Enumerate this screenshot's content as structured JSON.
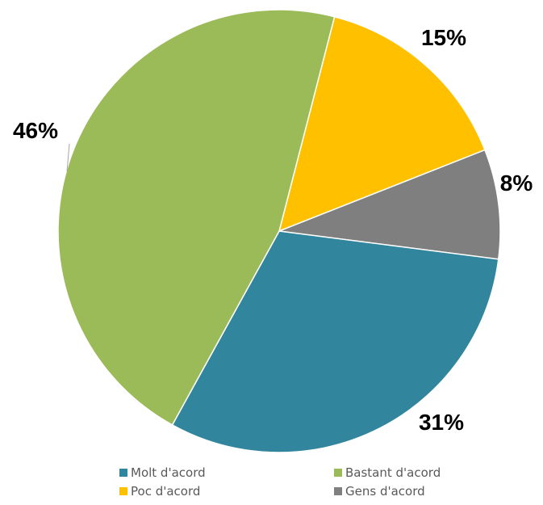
{
  "chart_data": {
    "type": "pie",
    "slices": [
      {
        "label": "Molt d'acord",
        "value": 31,
        "value_label": "31%",
        "color": "#31859c"
      },
      {
        "label": "Bastant d'acord",
        "value": 46,
        "value_label": "46%",
        "color": "#9bbb59"
      },
      {
        "label": "Poc d'acord",
        "value": 15,
        "value_label": "15%",
        "color": "#ffc000"
      },
      {
        "label": "Gens d'acord",
        "value": 8,
        "value_label": "8%",
        "color": "#7f7f7f"
      }
    ],
    "legend_position": "bottom",
    "slice_border_color": "#ffffff"
  }
}
